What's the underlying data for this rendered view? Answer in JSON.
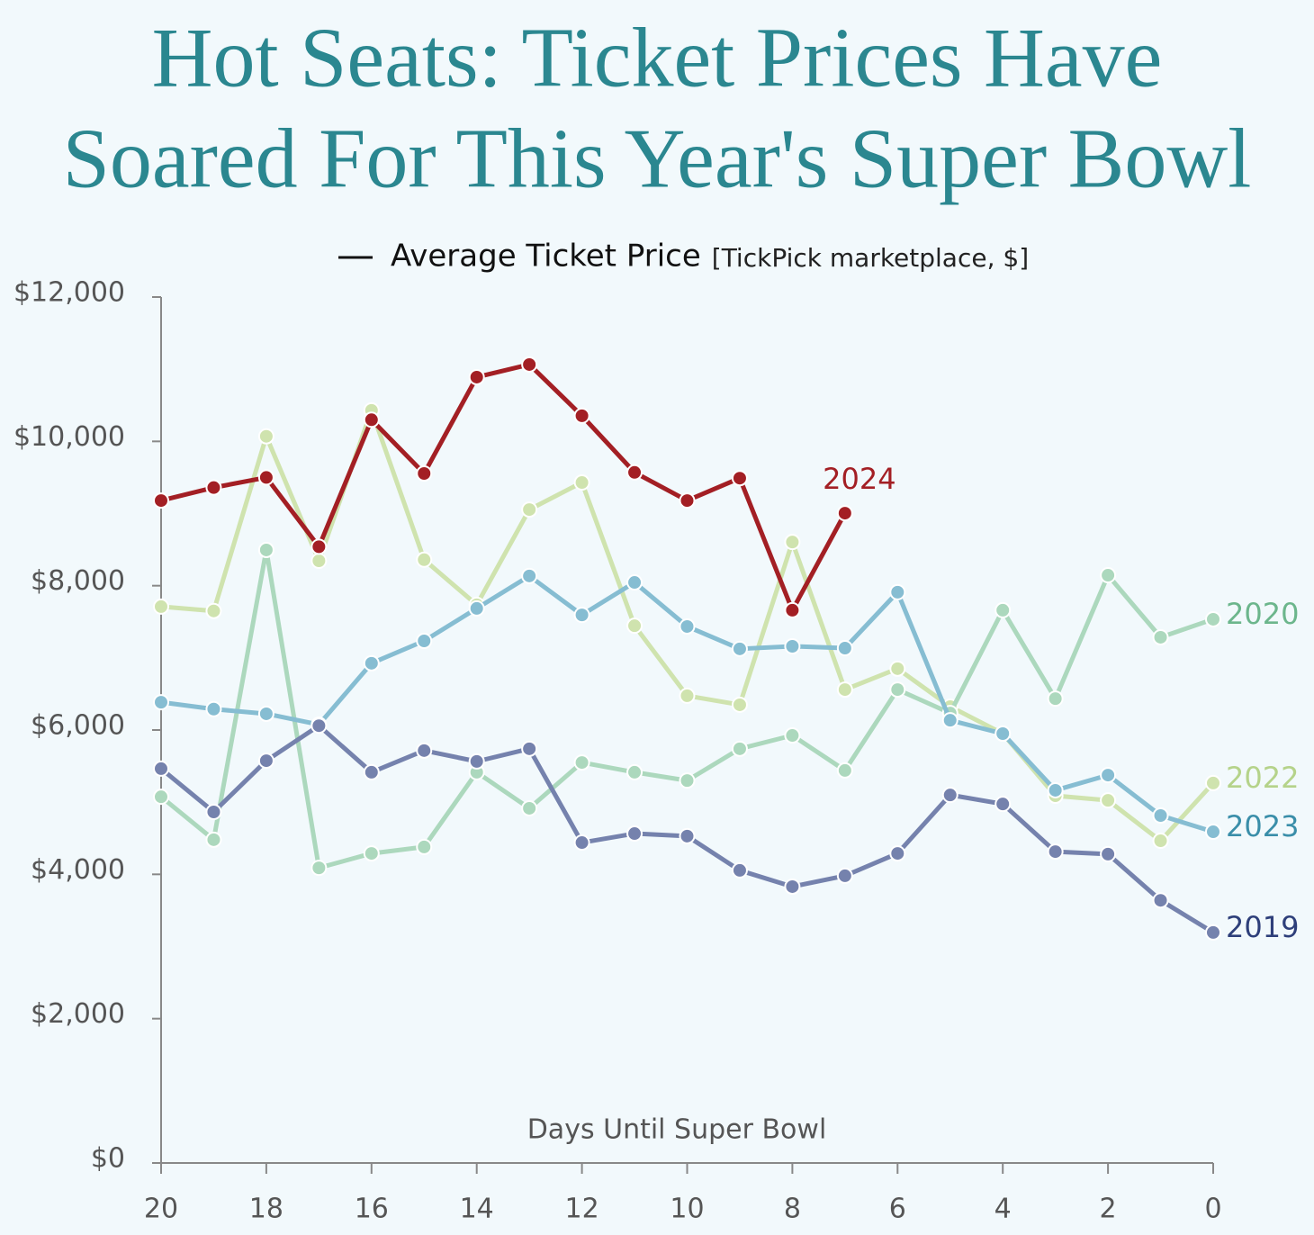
{
  "chart_data": {
    "type": "line",
    "title": [
      "Hot Seats: Ticket Prices Have",
      "Soared For This Year's Super Bowl"
    ],
    "legend_label": "Average Ticket Price",
    "subtitle": "[TickPick marketplace, $]",
    "x_label": "Days Until Super Bowl",
    "x": [
      20,
      19,
      18,
      17,
      16,
      15,
      14,
      13,
      12,
      11,
      10,
      9,
      8,
      7,
      6,
      5,
      4,
      3,
      2,
      1,
      0
    ],
    "xlim": [
      20,
      0
    ],
    "xticks": [
      20,
      18,
      16,
      14,
      12,
      10,
      8,
      6,
      4,
      2,
      0
    ],
    "ylim": [
      0,
      12000
    ],
    "yticks": [
      {
        "value": 0,
        "label": "$0"
      },
      {
        "value": 2000,
        "label": "$2,000"
      },
      {
        "value": 4000,
        "label": "$4,000"
      },
      {
        "value": 6000,
        "label": "$6,000"
      },
      {
        "value": 8000,
        "label": "$8,000"
      },
      {
        "value": 10000,
        "label": "$10,000"
      },
      {
        "value": 12000,
        "label": "$12,000"
      }
    ],
    "grid": false,
    "series": [
      {
        "name": "2022",
        "color": "#cfe3ae",
        "label_color": "#b5d38a",
        "values": [
          7710,
          7650,
          10070,
          8345,
          10430,
          8360,
          7735,
          9055,
          9430,
          7445,
          6475,
          6350,
          8605,
          6560,
          6850,
          6325,
          5950,
          5090,
          5025,
          4465,
          5265
        ]
      },
      {
        "name": "2020",
        "color": "#acd8bd",
        "label_color": "#6cb68c",
        "values": [
          5075,
          4480,
          8495,
          4090,
          4290,
          4380,
          5415,
          4915,
          5550,
          5415,
          5300,
          5740,
          5925,
          5440,
          6560,
          6235,
          7660,
          6435,
          8145,
          7285,
          7535
        ]
      },
      {
        "name": "2023",
        "color": "#86bdd2",
        "label_color": "#3a8ea9",
        "values": [
          6385,
          6290,
          6225,
          6075,
          6925,
          7235,
          7685,
          8135,
          7595,
          8045,
          7435,
          7125,
          7160,
          7135,
          7910,
          6135,
          5950,
          5165,
          5375,
          4815,
          4590
        ]
      },
      {
        "name": "2019",
        "color": "#7582ad",
        "label_color": "#2e3f7a",
        "values": [
          5465,
          4865,
          5575,
          6060,
          5415,
          5715,
          5565,
          5740,
          4440,
          4565,
          4530,
          4055,
          3830,
          3980,
          4290,
          5100,
          4975,
          4315,
          4280,
          3640,
          3195
        ]
      },
      {
        "name": "2024",
        "color": "#a31f24",
        "label_color": "#a31f24",
        "values": [
          9180,
          9360,
          9500,
          8540,
          10300,
          9555,
          10890,
          11065,
          10355,
          9570,
          9180,
          9490,
          7660,
          9005,
          null,
          null,
          null,
          null,
          null,
          null,
          null
        ]
      }
    ]
  }
}
